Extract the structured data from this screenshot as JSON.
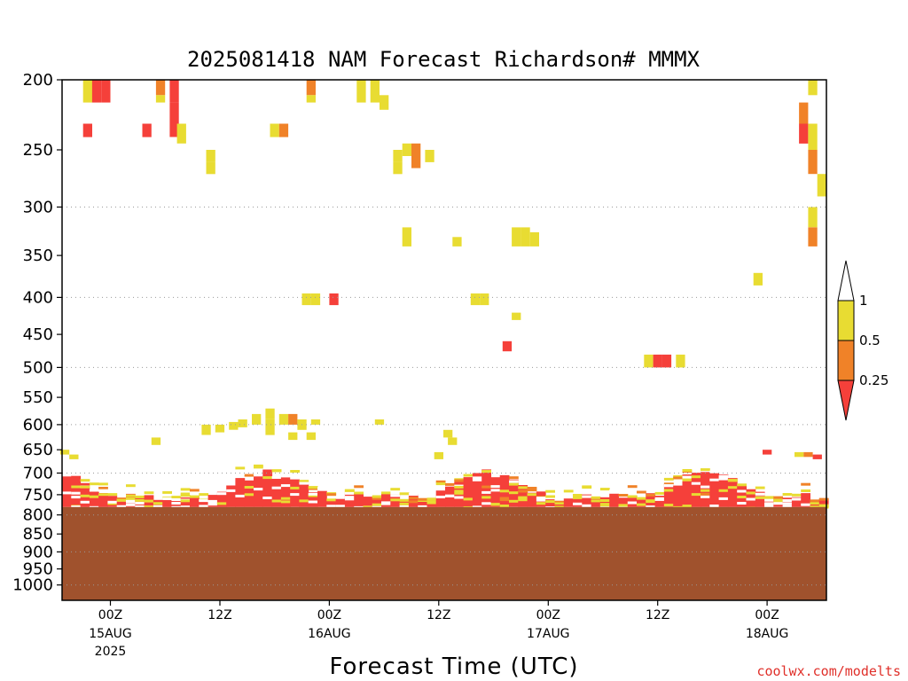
{
  "chart_data": {
    "type": "heatmap",
    "title": "2025081418 NAM Forecast Richardson# MMMX",
    "xlabel": "Forecast Time (UTC)",
    "ylabel": "",
    "y_scale": "log-pressure (hPa, inverted)",
    "ylim": [
      1050,
      200
    ],
    "x_range_hours_from_00Z_15AUG": [
      -5.3,
      78.5
    ],
    "y_ticks": [
      "200",
      "250",
      "300",
      "350",
      "400",
      "450",
      "500",
      "550",
      "600",
      "650",
      "700",
      "750",
      "800",
      "850",
      "900",
      "950",
      "1000"
    ],
    "grid_levels": [
      300,
      400,
      500,
      600,
      700,
      800,
      900,
      1000
    ],
    "x_ticks": [
      {
        "label": "00Z",
        "date": "15AUG",
        "year": "2025"
      },
      {
        "label": "12Z",
        "date": "",
        "year": ""
      },
      {
        "label": "00Z",
        "date": "16AUG",
        "year": ""
      },
      {
        "label": "12Z",
        "date": "",
        "year": ""
      },
      {
        "label": "00Z",
        "date": "17AUG",
        "year": ""
      },
      {
        "label": "12Z",
        "date": "",
        "year": ""
      },
      {
        "label": "00Z",
        "date": "18AUG",
        "year": ""
      }
    ],
    "legend": {
      "position": "right",
      "labels": [
        "1",
        "0.5",
        "0.25"
      ],
      "bins": [
        {
          "range": "> 1",
          "color": "#ffffff"
        },
        {
          "range": "0.5 - 1",
          "color": "#e8dc32"
        },
        {
          "range": "0.25 - 0.5",
          "color": "#f08228"
        },
        {
          "range": "< 0.25",
          "color": "#f5403a"
        }
      ]
    },
    "terrain_surface_hpa": 780,
    "terrain_color": "#a0522d",
    "cells_note": "each cell: [time hours from 00Z 15AUG, pressure top hPa, pressure bottom hPa, category]; category 1=0.5-1 (yellow), 2=0.25-0.5 (orange), 3=<0.25 (red)",
    "cells": [
      [
        -2.5,
        200,
        215,
        1
      ],
      [
        -1.5,
        200,
        215,
        3
      ],
      [
        -0.5,
        200,
        215,
        3
      ],
      [
        -2.5,
        230,
        240,
        3
      ],
      [
        4,
        230,
        240,
        3
      ],
      [
        5.5,
        200,
        210,
        2
      ],
      [
        5.5,
        210,
        215,
        1
      ],
      [
        7,
        200,
        215,
        3
      ],
      [
        7,
        215,
        240,
        3
      ],
      [
        7.8,
        230,
        240,
        1
      ],
      [
        7.8,
        240,
        245,
        1
      ],
      [
        11,
        250,
        260,
        1
      ],
      [
        11,
        260,
        270,
        1
      ],
      [
        18,
        230,
        240,
        1
      ],
      [
        19,
        230,
        240,
        2
      ],
      [
        22,
        200,
        210,
        2
      ],
      [
        22,
        210,
        215,
        1
      ],
      [
        27.5,
        200,
        215,
        1
      ],
      [
        29,
        200,
        215,
        1
      ],
      [
        30,
        210,
        220,
        1
      ],
      [
        31.5,
        250,
        260,
        1
      ],
      [
        31.5,
        260,
        270,
        1
      ],
      [
        32.5,
        245,
        255,
        1
      ],
      [
        33.5,
        245,
        255,
        2
      ],
      [
        33.5,
        255,
        265,
        2
      ],
      [
        35,
        250,
        260,
        1
      ],
      [
        32.5,
        320,
        340,
        1
      ],
      [
        38,
        330,
        340,
        1
      ],
      [
        44.5,
        320,
        340,
        1
      ],
      [
        45.5,
        320,
        340,
        1
      ],
      [
        46.5,
        325,
        340,
        1
      ],
      [
        40,
        395,
        410,
        1
      ],
      [
        41,
        395,
        410,
        1
      ],
      [
        21.5,
        395,
        410,
        1
      ],
      [
        22.5,
        395,
        410,
        1
      ],
      [
        24.5,
        395,
        410,
        3
      ],
      [
        44.5,
        420,
        430,
        1
      ],
      [
        43.5,
        460,
        475,
        3
      ],
      [
        59,
        480,
        500,
        1
      ],
      [
        60,
        480,
        500,
        3
      ],
      [
        61,
        480,
        500,
        3
      ],
      [
        62.5,
        480,
        500,
        1
      ],
      [
        71,
        370,
        385,
        1
      ],
      [
        76,
        230,
        245,
        3
      ],
      [
        76,
        215,
        230,
        2
      ],
      [
        77,
        200,
        210,
        1
      ],
      [
        77,
        230,
        250,
        1
      ],
      [
        77,
        250,
        270,
        2
      ],
      [
        78,
        270,
        290,
        1
      ],
      [
        77,
        300,
        320,
        1
      ],
      [
        77,
        320,
        340,
        2
      ],
      [
        10.5,
        600,
        620,
        1
      ],
      [
        12,
        600,
        615,
        1
      ],
      [
        13.5,
        595,
        610,
        1
      ],
      [
        14.5,
        590,
        605,
        1
      ],
      [
        16,
        580,
        600,
        1
      ],
      [
        17.5,
        570,
        590,
        1
      ],
      [
        17.5,
        590,
        620,
        1
      ],
      [
        19,
        580,
        600,
        1
      ],
      [
        20,
        580,
        600,
        2
      ],
      [
        21,
        590,
        610,
        1
      ],
      [
        22.5,
        590,
        600,
        1
      ],
      [
        20,
        615,
        630,
        1
      ],
      [
        22,
        615,
        630,
        1
      ],
      [
        29.5,
        590,
        600,
        1
      ],
      [
        37,
        610,
        625,
        1
      ],
      [
        37.5,
        625,
        640,
        1
      ],
      [
        36,
        655,
        670,
        1
      ],
      [
        -5,
        650,
        660,
        1
      ],
      [
        -4,
        660,
        670,
        1
      ],
      [
        5,
        625,
        640,
        1
      ],
      [
        72,
        650,
        660,
        3
      ],
      [
        75.5,
        655,
        665,
        1
      ],
      [
        76.5,
        655,
        665,
        2
      ],
      [
        77.5,
        660,
        670,
        3
      ]
    ],
    "boundary_layer_note": "Mostly red (<0.25) near surface, interspersed yellow/orange flecks between ~650 and 780 hPa"
  },
  "credit": "coolwx.com/modelts"
}
